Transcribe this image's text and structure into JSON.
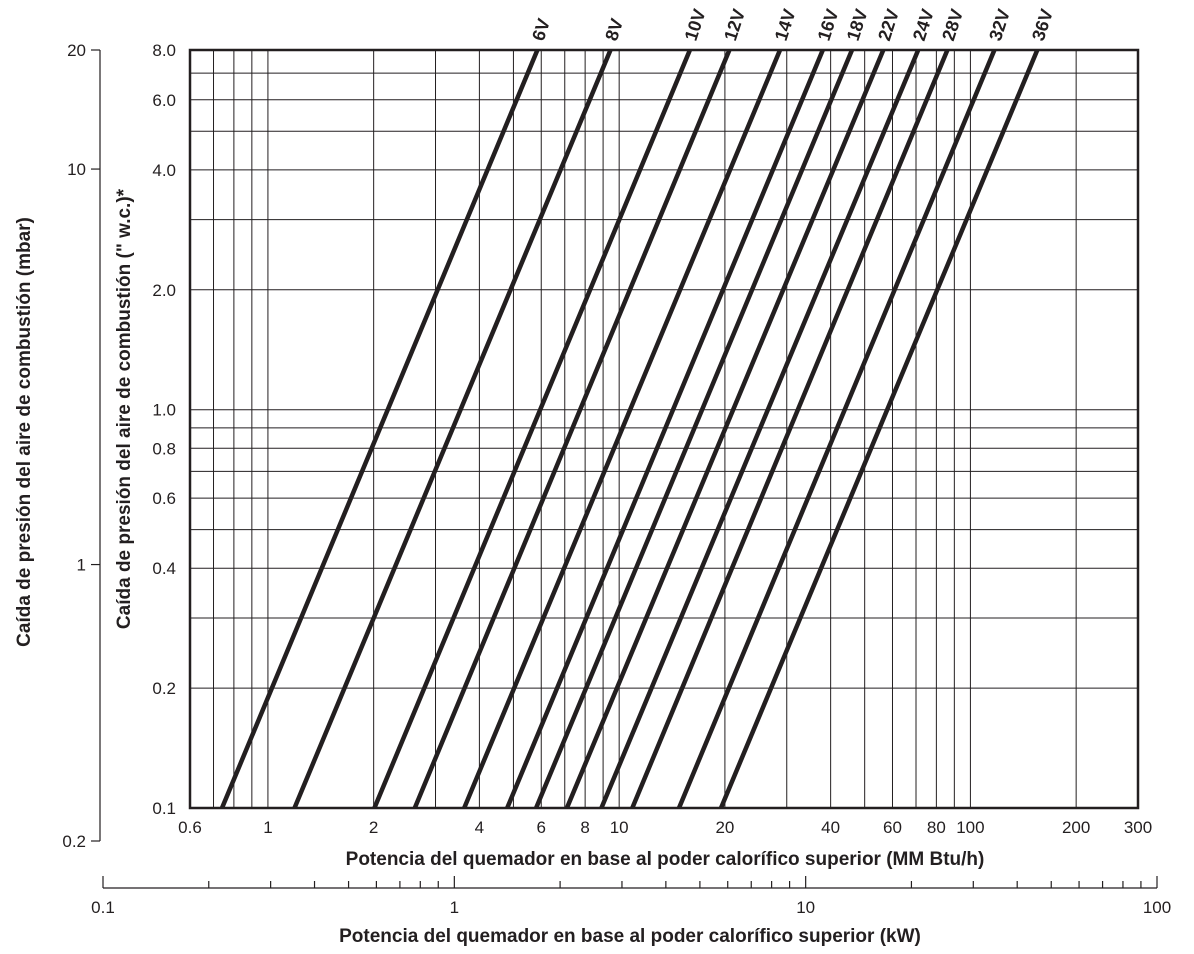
{
  "chart_data": {
    "type": "line",
    "title": "",
    "xlabel": "Potencia del quemador en base al poder calorífico superior (MM Btu/h)",
    "ylabel": "Caída de presión del aire de combustión (\" w.c.)*",
    "x_scale": "log",
    "y_scale": "log",
    "xlim": [
      0.6,
      300
    ],
    "ylim": [
      0.1,
      8.0
    ],
    "grid": true,
    "x_ticks": [
      {
        "value": 0.6,
        "label": "0.6"
      },
      {
        "value": 1,
        "label": "1"
      },
      {
        "value": 2,
        "label": "2"
      },
      {
        "value": 4,
        "label": "4"
      },
      {
        "value": 6,
        "label": "6"
      },
      {
        "value": 8,
        "label": "8"
      },
      {
        "value": 10,
        "label": "10"
      },
      {
        "value": 20,
        "label": "20"
      },
      {
        "value": 40,
        "label": "40"
      },
      {
        "value": 60,
        "label": "60"
      },
      {
        "value": 80,
        "label": "80"
      },
      {
        "value": 100,
        "label": "100"
      },
      {
        "value": 200,
        "label": "200"
      },
      {
        "value": 300,
        "label": "300"
      }
    ],
    "y_ticks": [
      {
        "value": 0.1,
        "label": "0.1"
      },
      {
        "value": 0.2,
        "label": "0.2"
      },
      {
        "value": 0.4,
        "label": "0.4"
      },
      {
        "value": 0.6,
        "label": "0.6"
      },
      {
        "value": 0.8,
        "label": "0.8"
      },
      {
        "value": 1.0,
        "label": "1.0"
      },
      {
        "value": 2.0,
        "label": "2.0"
      },
      {
        "value": 4.0,
        "label": "4.0"
      },
      {
        "value": 6.0,
        "label": "6.0"
      },
      {
        "value": 8.0,
        "label": "8.0"
      }
    ],
    "x_minor_gridlines": [
      0.7,
      0.8,
      0.9,
      1,
      2,
      3,
      4,
      5,
      6,
      7,
      8,
      9,
      10,
      20,
      30,
      40,
      50,
      60,
      70,
      80,
      90,
      100,
      200
    ],
    "y_minor_gridlines": [
      0.2,
      0.3,
      0.4,
      0.5,
      0.6,
      0.7,
      0.8,
      0.9,
      1.0,
      2.0,
      3.0,
      4.0,
      5.0,
      6.0,
      7.0
    ],
    "secondary_y_axis": {
      "label": "Caída de presión del aire de combustión (mbar)",
      "scale": "log",
      "ylim": [
        0.2,
        20
      ],
      "ticks": [
        {
          "value": 0.2,
          "label": "0.2"
        },
        {
          "value": 1,
          "label": "1"
        },
        {
          "value": 10,
          "label": "10"
        },
        {
          "value": 20,
          "label": "20"
        }
      ]
    },
    "secondary_x_axis": {
      "label": "Potencia del quemador en base al poder calorífico superior (kW)",
      "scale": "log",
      "xlim": [
        0.1,
        100
      ],
      "ticks": [
        {
          "value": 0.1,
          "label": "0.1"
        },
        {
          "value": 1,
          "label": "1"
        },
        {
          "value": 10,
          "label": "10"
        },
        {
          "value": 100,
          "label": "100"
        }
      ]
    },
    "series": [
      {
        "name": "6V",
        "x": [
          0.74,
          5.85
        ],
        "y": [
          0.1,
          8.0
        ]
      },
      {
        "name": "8V",
        "x": [
          1.19,
          9.45
        ],
        "y": [
          0.1,
          8.0
        ]
      },
      {
        "name": "10V",
        "x": [
          2.01,
          15.9
        ],
        "y": [
          0.1,
          8.0
        ]
      },
      {
        "name": "12V",
        "x": [
          2.62,
          20.6
        ],
        "y": [
          0.1,
          8.0
        ]
      },
      {
        "name": "14V",
        "x": [
          3.62,
          28.7
        ],
        "y": [
          0.1,
          8.0
        ]
      },
      {
        "name": "16V",
        "x": [
          4.8,
          38.0
        ],
        "y": [
          0.1,
          8.0
        ]
      },
      {
        "name": "18V",
        "x": [
          5.8,
          46.0
        ],
        "y": [
          0.1,
          8.0
        ]
      },
      {
        "name": "22V",
        "x": [
          7.1,
          56.5
        ],
        "y": [
          0.1,
          8.0
        ]
      },
      {
        "name": "24V",
        "x": [
          8.9,
          71.0
        ],
        "y": [
          0.1,
          8.0
        ]
      },
      {
        "name": "28V",
        "x": [
          10.9,
          86.0
        ],
        "y": [
          0.1,
          8.0
        ]
      },
      {
        "name": "32V",
        "x": [
          14.8,
          117.0
        ],
        "y": [
          0.1,
          8.0
        ]
      },
      {
        "name": "36V",
        "x": [
          19.5,
          155.0
        ],
        "y": [
          0.1,
          8.0
        ]
      }
    ]
  }
}
